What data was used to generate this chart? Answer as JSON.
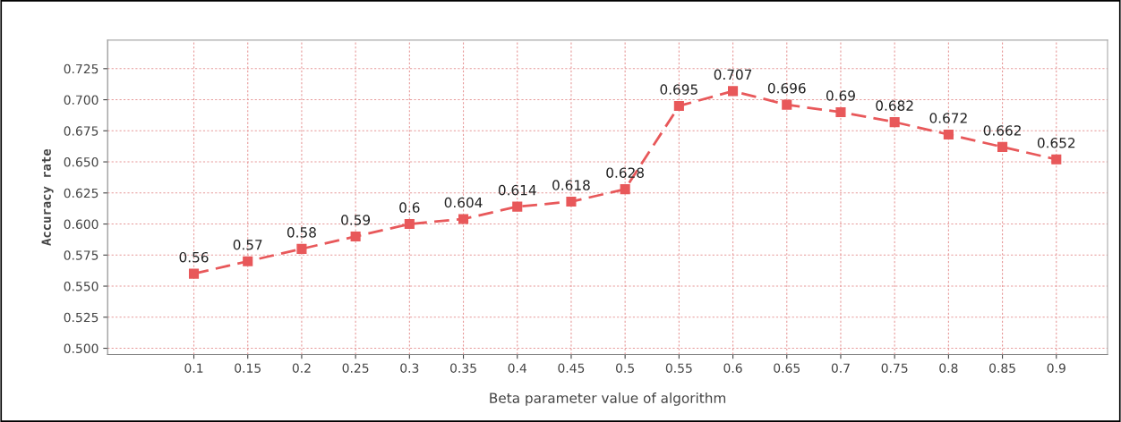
{
  "chart_data": {
    "type": "line",
    "xlabel": "Beta parameter value of algorithm",
    "ylabel": "Accuracy rate",
    "categories": [
      "0.1",
      "0.15",
      "0.2",
      "0.25",
      "0.3",
      "0.35",
      "0.4",
      "0.45",
      "0.5",
      "0.55",
      "0.6",
      "0.65",
      "0.7",
      "0.75",
      "0.8",
      "0.85",
      "0.9"
    ],
    "series": [
      {
        "color": "#e8585a",
        "values": [
          0.56,
          0.57,
          0.58,
          0.59,
          0.6,
          0.604,
          0.614,
          0.618,
          0.628,
          0.695,
          0.707,
          0.696,
          0.69,
          0.682,
          0.672,
          0.662,
          0.652
        ]
      }
    ],
    "ylim": [
      0.495,
      0.748
    ],
    "yticks": [
      {
        "value": 0.5,
        "label": "0.500"
      },
      {
        "value": 0.525,
        "label": "0.525"
      },
      {
        "value": 0.55,
        "label": "0.550"
      },
      {
        "value": 0.575,
        "label": "0.575"
      },
      {
        "value": 0.6,
        "label": "0.600"
      },
      {
        "value": 0.625,
        "label": "0.625"
      },
      {
        "value": 0.65,
        "label": "0.650"
      },
      {
        "value": 0.675,
        "label": "0.675"
      },
      {
        "value": 0.7,
        "label": "0.700"
      },
      {
        "value": 0.725,
        "label": "0.725"
      }
    ],
    "grid": true,
    "data_labels": true,
    "marker": "square",
    "line_style": "dashed",
    "legend": false
  }
}
